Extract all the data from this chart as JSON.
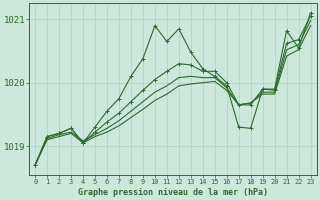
{
  "bg_color": "#cce8dc",
  "grid_color": "#a8d4c0",
  "line_color": "#2d6a2d",
  "title": "Graphe pression niveau de la mer (hPa)",
  "yticks": [
    1019,
    1020,
    1021
  ],
  "xlim": [
    -0.5,
    23.5
  ],
  "ylim": [
    1018.55,
    1021.25
  ],
  "xticks": [
    0,
    1,
    2,
    3,
    4,
    5,
    6,
    7,
    8,
    9,
    10,
    11,
    12,
    13,
    14,
    15,
    16,
    17,
    18,
    19,
    20,
    21,
    22,
    23
  ],
  "hours": [
    0,
    1,
    2,
    3,
    4,
    5,
    6,
    7,
    8,
    9,
    10,
    11,
    12,
    13,
    14,
    15,
    16,
    17,
    18,
    19,
    20,
    21,
    22,
    23
  ],
  "y_jagged": [
    1018.7,
    1019.15,
    1019.2,
    1019.28,
    1019.05,
    1019.3,
    1019.55,
    1019.75,
    1020.1,
    1020.38,
    1020.9,
    1020.65,
    1020.85,
    1020.48,
    1020.22,
    1020.1,
    1019.95,
    1019.3,
    1019.28,
    1019.9,
    1019.9,
    1020.82,
    1020.55,
    1021.1
  ],
  "y_smooth1": [
    1018.7,
    1019.15,
    1019.2,
    1019.28,
    1019.05,
    1019.22,
    1019.38,
    1019.52,
    1019.7,
    1019.88,
    1020.05,
    1020.18,
    1020.3,
    1020.28,
    1020.18,
    1020.18,
    1020.0,
    1019.65,
    1019.65,
    1019.9,
    1019.88,
    1020.62,
    1020.68,
    1021.05
  ],
  "y_smooth2": [
    1018.7,
    1019.12,
    1019.18,
    1019.22,
    1019.08,
    1019.18,
    1019.28,
    1019.4,
    1019.55,
    1019.7,
    1019.85,
    1019.95,
    1020.08,
    1020.1,
    1020.08,
    1020.08,
    1019.92,
    1019.65,
    1019.68,
    1019.85,
    1019.85,
    1020.52,
    1020.6,
    1020.98
  ],
  "y_linear": [
    1018.7,
    1019.1,
    1019.15,
    1019.2,
    1019.05,
    1019.15,
    1019.22,
    1019.32,
    1019.45,
    1019.58,
    1019.72,
    1019.82,
    1019.95,
    1019.98,
    1020.0,
    1020.02,
    1019.88,
    1019.65,
    1019.68,
    1019.82,
    1019.82,
    1020.42,
    1020.52,
    1020.9
  ]
}
